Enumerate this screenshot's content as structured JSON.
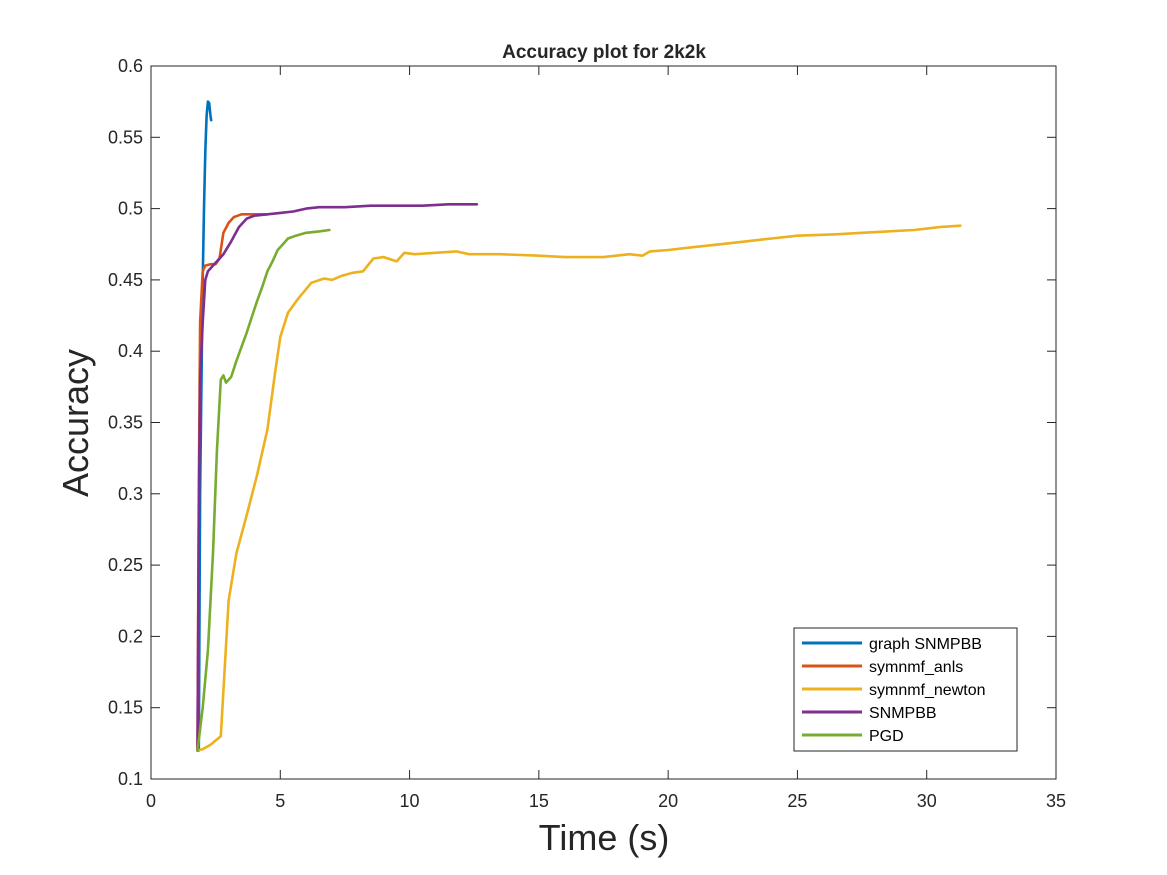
{
  "chart_data": {
    "type": "line",
    "title": "Accuracy plot for 2k2k",
    "xlabel": "Time (s)",
    "ylabel": "Accuracy",
    "xlim": [
      0,
      35
    ],
    "ylim": [
      0.1,
      0.6
    ],
    "xticks": [
      0,
      5,
      10,
      15,
      20,
      25,
      30,
      35
    ],
    "yticks": [
      0.1,
      0.15,
      0.2,
      0.25,
      0.3,
      0.35,
      0.4,
      0.45,
      0.5,
      0.55,
      0.6
    ],
    "grid": false,
    "legend_position": "bottom-right",
    "series": [
      {
        "name": "graph SNMPBB",
        "color": "#0072BD",
        "x": [
          1.85,
          1.9,
          2.0,
          2.05,
          2.1,
          2.15,
          2.2,
          2.25,
          2.3,
          2.33
        ],
        "y": [
          0.12,
          0.3,
          0.45,
          0.5,
          0.54,
          0.565,
          0.575,
          0.574,
          0.565,
          0.562
        ]
      },
      {
        "name": "symnmf_anls",
        "color": "#D95319",
        "x": [
          1.8,
          1.85,
          1.9,
          2.0,
          2.1,
          2.3,
          2.5,
          2.65,
          2.8,
          3.0,
          3.2,
          3.5,
          3.8,
          4.2,
          4.5
        ],
        "y": [
          0.12,
          0.3,
          0.42,
          0.456,
          0.46,
          0.461,
          0.461,
          0.465,
          0.483,
          0.49,
          0.494,
          0.496,
          0.496,
          0.496,
          0.496
        ]
      },
      {
        "name": "symnmf_newton",
        "color": "#EDB120",
        "x": [
          1.8,
          2.0,
          2.3,
          2.7,
          3.0,
          3.3,
          3.7,
          4.1,
          4.5,
          4.8,
          5.0,
          5.3,
          5.7,
          6.2,
          6.7,
          7.0,
          7.4,
          7.8,
          8.2,
          8.6,
          9.0,
          9.5,
          9.8,
          10.2,
          11.0,
          11.8,
          12.3,
          13.5,
          15.0,
          16.0,
          17.5,
          18.5,
          19.0,
          19.3,
          20.0,
          21.0,
          22.0,
          23.0,
          24.0,
          25.0,
          26.5,
          27.5,
          28.5,
          29.5,
          30.0,
          30.5,
          31.3
        ],
        "y": [
          0.12,
          0.121,
          0.124,
          0.13,
          0.225,
          0.258,
          0.285,
          0.313,
          0.345,
          0.385,
          0.41,
          0.427,
          0.437,
          0.448,
          0.451,
          0.45,
          0.453,
          0.455,
          0.456,
          0.465,
          0.466,
          0.463,
          0.469,
          0.468,
          0.469,
          0.47,
          0.468,
          0.468,
          0.467,
          0.466,
          0.466,
          0.468,
          0.467,
          0.47,
          0.471,
          0.473,
          0.475,
          0.477,
          0.479,
          0.481,
          0.482,
          0.483,
          0.484,
          0.485,
          0.486,
          0.487,
          0.488
        ]
      },
      {
        "name": "SNMPBB",
        "color": "#7E2F8E",
        "x": [
          1.8,
          1.85,
          1.9,
          2.0,
          2.1,
          2.2,
          2.5,
          2.8,
          3.1,
          3.4,
          3.7,
          4.0,
          4.5,
          5.0,
          5.5,
          6.0,
          6.5,
          7.5,
          8.5,
          9.5,
          10.5,
          11.5,
          12.6
        ],
        "y": [
          0.12,
          0.28,
          0.38,
          0.42,
          0.45,
          0.456,
          0.462,
          0.468,
          0.477,
          0.487,
          0.493,
          0.495,
          0.496,
          0.497,
          0.498,
          0.5,
          0.501,
          0.501,
          0.502,
          0.502,
          0.502,
          0.503,
          0.503
        ]
      },
      {
        "name": "PGD",
        "color": "#77AC30",
        "x": [
          1.8,
          2.0,
          2.2,
          2.4,
          2.55,
          2.7,
          2.8,
          2.9,
          3.1,
          3.3,
          3.5,
          3.7,
          3.9,
          4.1,
          4.3,
          4.5,
          4.7,
          4.9,
          5.1,
          5.3,
          5.6,
          6.0,
          6.5,
          6.9
        ],
        "y": [
          0.12,
          0.15,
          0.19,
          0.26,
          0.33,
          0.38,
          0.383,
          0.378,
          0.382,
          0.393,
          0.403,
          0.413,
          0.424,
          0.435,
          0.445,
          0.456,
          0.463,
          0.471,
          0.475,
          0.479,
          0.481,
          0.483,
          0.484,
          0.485
        ]
      }
    ]
  }
}
